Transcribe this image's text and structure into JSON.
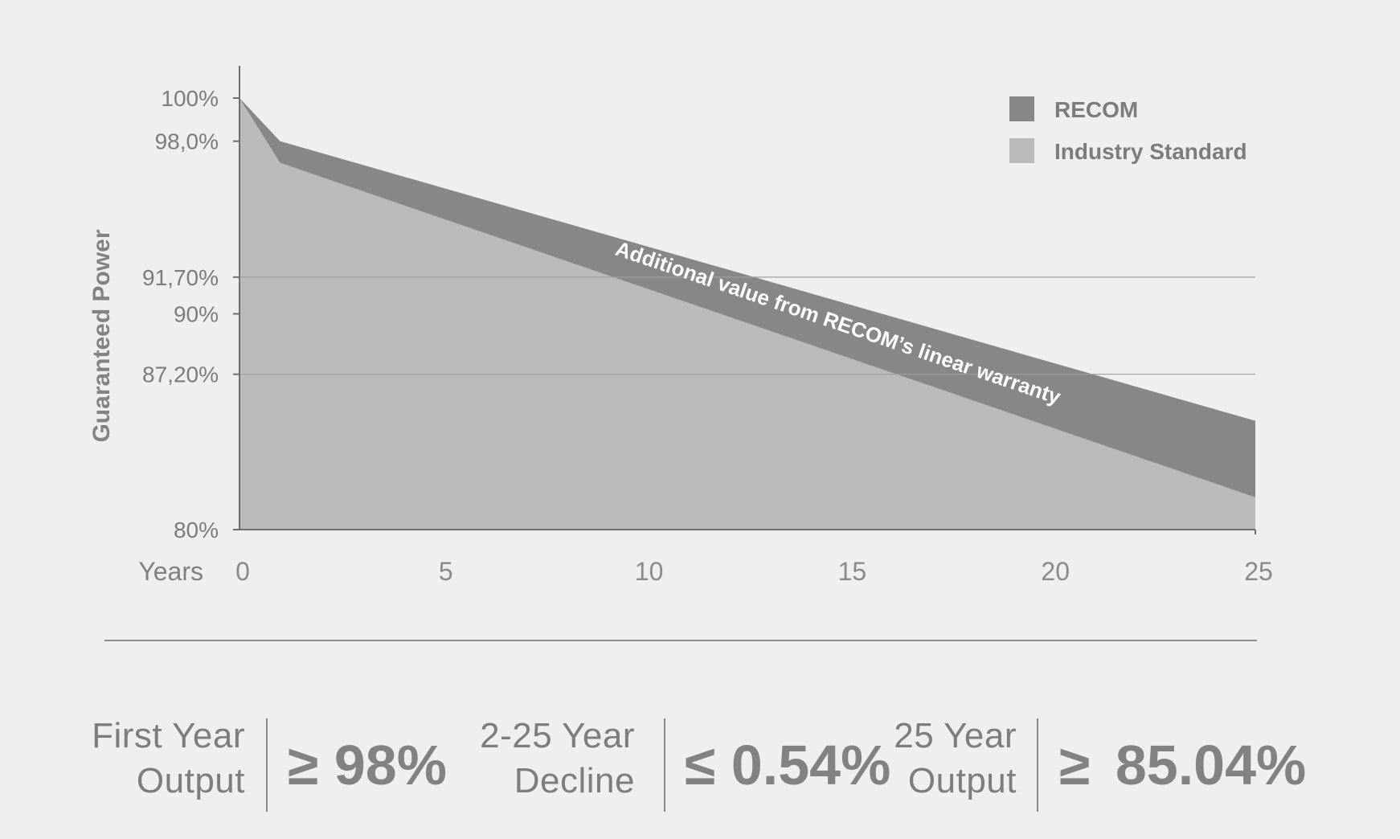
{
  "chart_data": {
    "type": "area",
    "xlabel": "Years",
    "ylabel": "Guaranteed Power",
    "x_ticks": [
      0,
      5,
      10,
      15,
      20,
      25
    ],
    "y_ticks": [
      "100%",
      "98,0%",
      "91,70%",
      "90%",
      "87,20%",
      "80%"
    ],
    "y_tick_values": [
      100,
      98,
      91.7,
      90,
      87.2,
      80
    ],
    "gridlines_at": [
      91.7,
      87.2
    ],
    "xlim": [
      0,
      25
    ],
    "ylim": [
      80,
      100
    ],
    "series": [
      {
        "name": "RECOM",
        "color": "#868789",
        "x": [
          0,
          1,
          25
        ],
        "values": [
          100,
          98,
          85.04
        ]
      },
      {
        "name": "Industry Standard",
        "color": "#b9babc",
        "x": [
          0,
          1,
          25
        ],
        "values": [
          100,
          97,
          81.5
        ]
      }
    ],
    "annotation": "Additional value from RECOM’s linear warranty",
    "legend_position": "top-right"
  },
  "stats": [
    {
      "label_line1": "First Year",
      "label_line2": "Output",
      "symbol": "≥",
      "value": "98%"
    },
    {
      "label_line1": "2-25 Year",
      "label_line2": "Decline",
      "symbol": "≤",
      "value": "0.54%"
    },
    {
      "label_line1": "25 Year",
      "label_line2": "Output",
      "symbol": "≥",
      "value": "85.04%"
    }
  ]
}
